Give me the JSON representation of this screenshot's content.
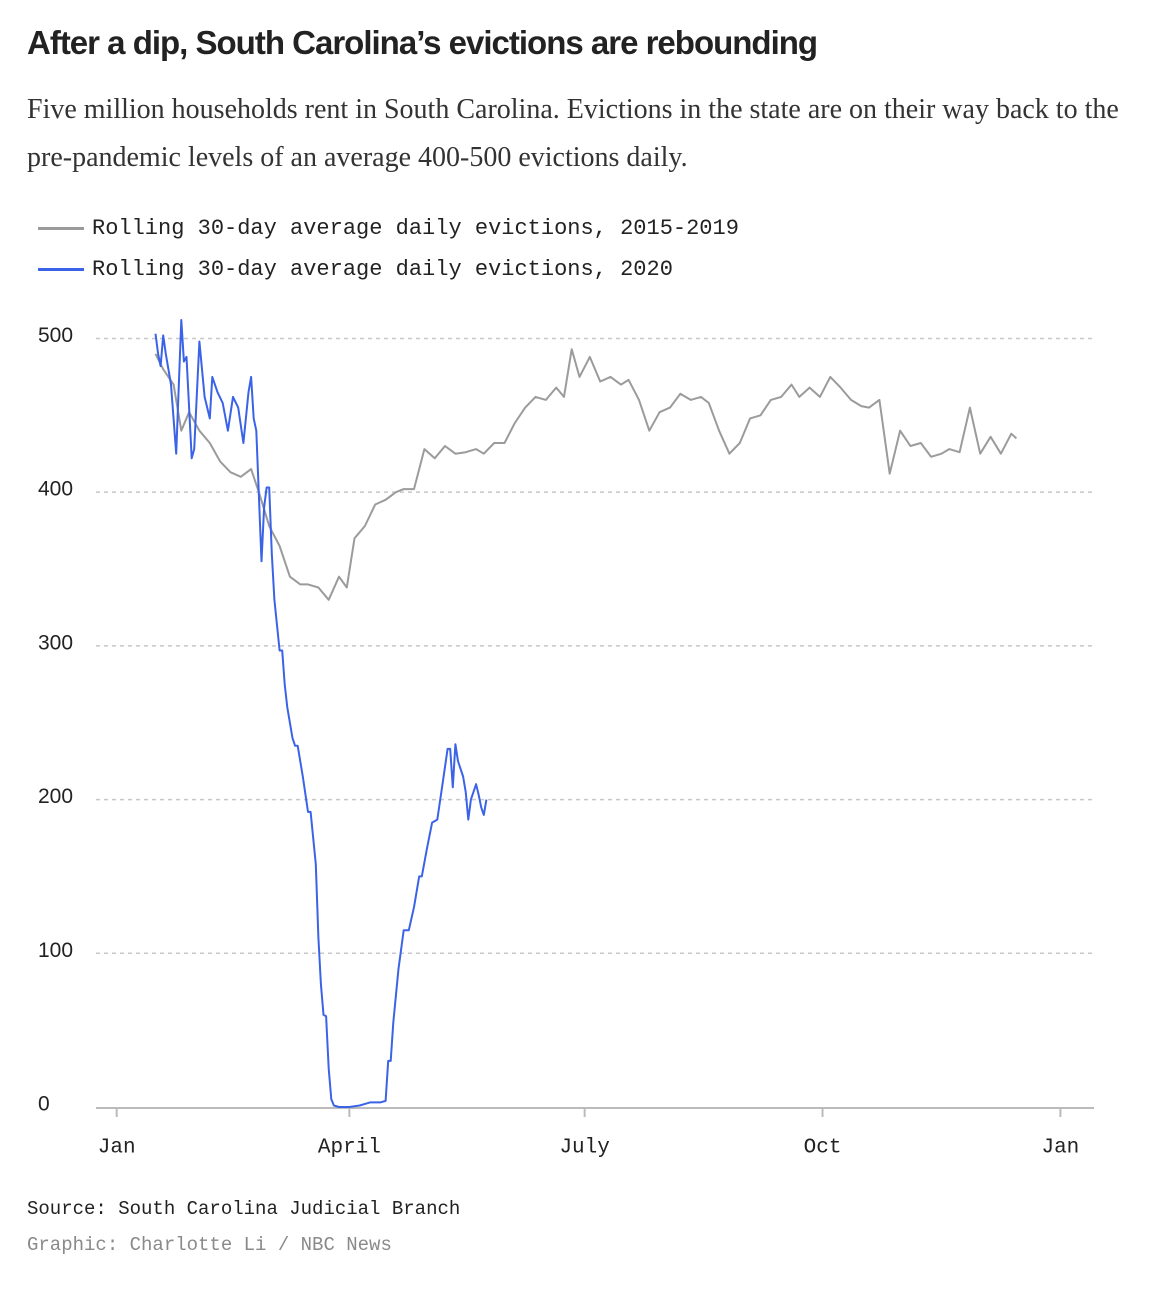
{
  "chart_data": {
    "type": "line",
    "title": "After a dip, South Carolina’s evictions are rebounding",
    "subtitle": "Five million households rent in South Carolina. Evictions in the state are on their way back to the pre-pandemic levels of an average 400-500 evictions daily.",
    "source": "Source: South Carolina Judicial Branch",
    "credit": "Graphic: Charlotte Li / NBC News",
    "grid": true,
    "xlim": [
      -8,
      378
    ],
    "ylim": [
      0,
      512
    ],
    "xticks": [
      {
        "value": 0,
        "label": "Jan"
      },
      {
        "value": 90,
        "label": "April"
      },
      {
        "value": 181,
        "label": "July"
      },
      {
        "value": 273,
        "label": "Oct"
      },
      {
        "value": 365,
        "label": "Jan"
      }
    ],
    "yticks": [
      0,
      100,
      200,
      300,
      400,
      500
    ],
    "series": [
      {
        "name": "Rolling 30-day average daily evictions, 2015-2019",
        "color": "#9b9b9b",
        "x": [
          15,
          18,
          22,
          25,
          28,
          32,
          36,
          40,
          44,
          48,
          52,
          55,
          59,
          63,
          67,
          71,
          74,
          78,
          82,
          86,
          89,
          92,
          96,
          100,
          104,
          108,
          111,
          115,
          119,
          123,
          127,
          131,
          135,
          139,
          142,
          146,
          150,
          154,
          158,
          162,
          166,
          170,
          173,
          176,
          179,
          183,
          187,
          191,
          195,
          198,
          202,
          206,
          210,
          214,
          218,
          222,
          226,
          229,
          233,
          237,
          241,
          245,
          249,
          253,
          257,
          261,
          264,
          268,
          272,
          276,
          280,
          284,
          288,
          291,
          295,
          299,
          303,
          307,
          311,
          315,
          319,
          322,
          326,
          330,
          334,
          338,
          342,
          346,
          348
        ],
        "values": [
          490,
          480,
          470,
          440,
          452,
          440,
          432,
          420,
          413,
          410,
          415,
          400,
          378,
          365,
          345,
          340,
          340,
          338,
          330,
          345,
          338,
          370,
          378,
          392,
          395,
          400,
          402,
          402,
          428,
          422,
          430,
          425,
          426,
          428,
          425,
          432,
          432,
          445,
          455,
          462,
          460,
          468,
          462,
          493,
          475,
          488,
          472,
          475,
          470,
          473,
          460,
          440,
          452,
          455,
          464,
          460,
          462,
          458,
          440,
          425,
          432,
          448,
          450,
          460,
          462,
          470,
          462,
          468,
          462,
          475,
          468,
          460,
          456,
          455,
          460,
          412,
          440,
          430,
          432,
          423,
          425,
          428,
          426,
          455,
          425,
          436,
          425,
          438,
          435
        ]
      },
      {
        "name": "Rolling 30-day average daily evictions, 2020",
        "color": "#3b63e8",
        "x": [
          15,
          16,
          17,
          18,
          19,
          21,
          23,
          25,
          26,
          27,
          29,
          30,
          32,
          34,
          36,
          37,
          39,
          41,
          43,
          45,
          47,
          49,
          51,
          52,
          53,
          54,
          56,
          57,
          58,
          59,
          60,
          61,
          63,
          64,
          65,
          66,
          68,
          69,
          70,
          72,
          74,
          75,
          77,
          78,
          79,
          80,
          81,
          82,
          83,
          84,
          86,
          90,
          94,
          96,
          98,
          102,
          104,
          105,
          106,
          107,
          109,
          111,
          113,
          115,
          117,
          118,
          120,
          122,
          124,
          126,
          128,
          129,
          130,
          131,
          132,
          134,
          135,
          136,
          137,
          139,
          140,
          141,
          142,
          143
        ],
        "values": [
          503,
          490,
          482,
          502,
          490,
          470,
          425,
          512,
          485,
          488,
          422,
          428,
          498,
          462,
          448,
          475,
          465,
          458,
          440,
          462,
          455,
          432,
          465,
          475,
          448,
          440,
          355,
          390,
          403,
          403,
          360,
          330,
          297,
          297,
          275,
          260,
          240,
          235,
          235,
          215,
          192,
          192,
          158,
          110,
          80,
          60,
          59,
          25,
          5,
          1,
          0,
          0,
          1,
          2,
          3,
          3,
          4,
          30,
          30,
          55,
          90,
          115,
          115,
          130,
          150,
          150,
          168,
          185,
          187,
          210,
          233,
          233,
          208,
          236,
          225,
          215,
          205,
          187,
          200,
          210,
          203,
          195,
          190,
          200
        ]
      }
    ]
  }
}
